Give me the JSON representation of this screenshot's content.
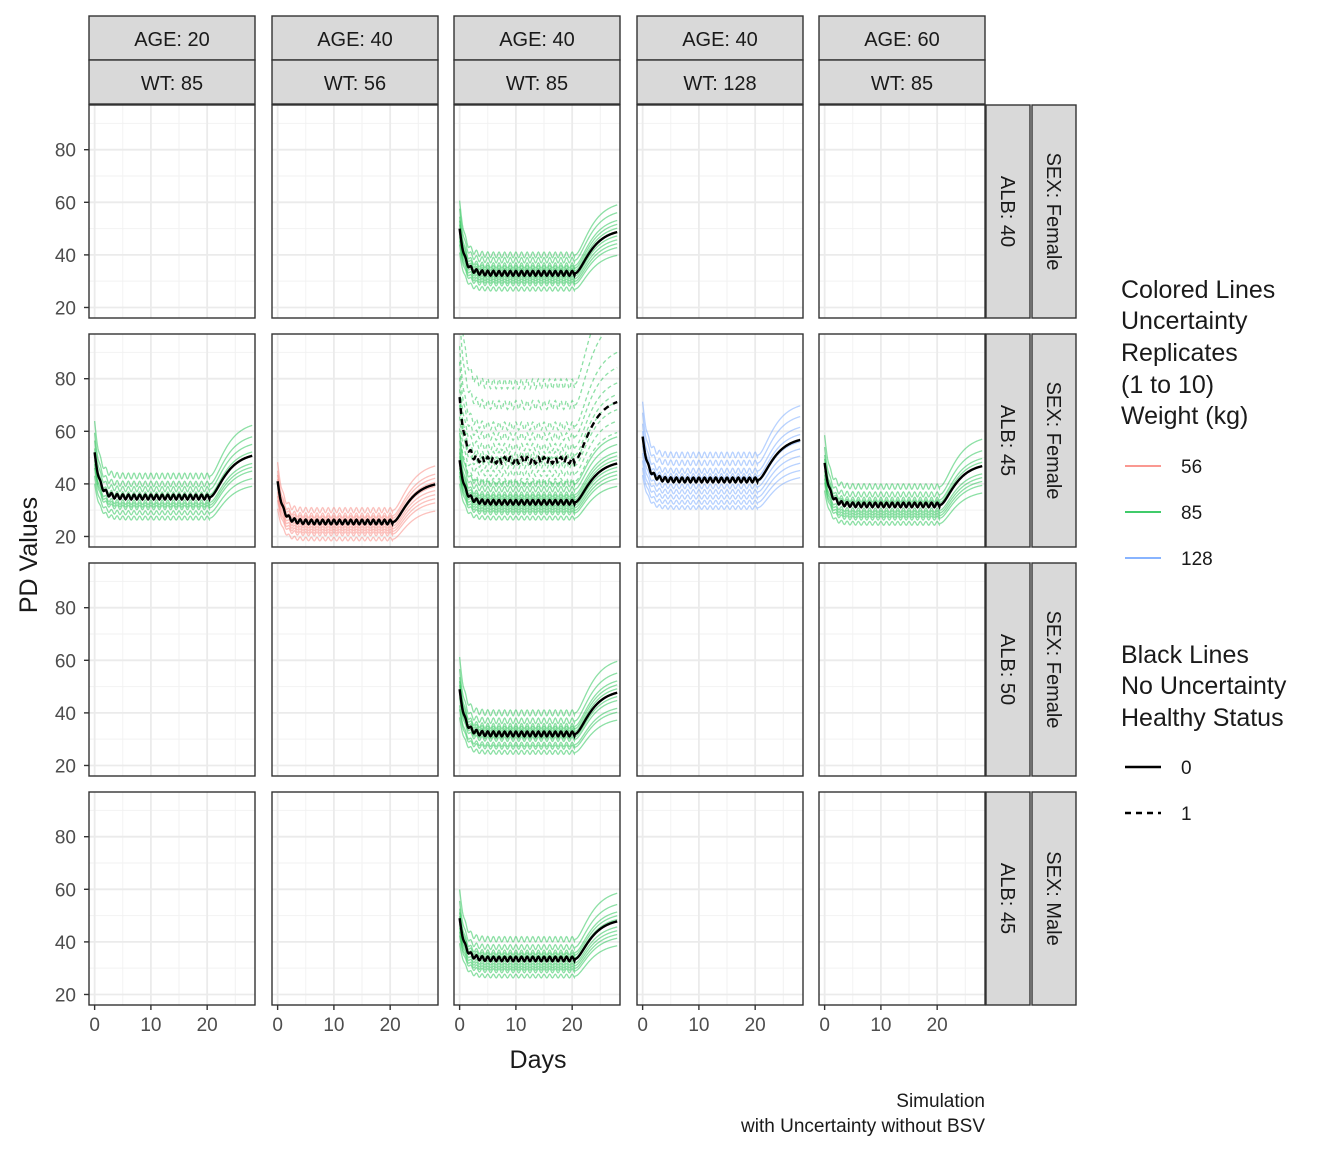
{
  "chart_data": {
    "type": "line",
    "title": "",
    "xlabel": "Days",
    "ylabel": "PD Values",
    "xlim": [
      -1,
      28.5
    ],
    "ylim": [
      16,
      97
    ],
    "x_ticks": [
      0,
      10,
      20
    ],
    "y_ticks": [
      20,
      40,
      60,
      80
    ],
    "grid": true,
    "caption": [
      "Simulation",
      "with Uncertainty without BSV"
    ],
    "facet_columns": [
      {
        "age": "AGE: 20",
        "wt": "WT: 85"
      },
      {
        "age": "AGE: 40",
        "wt": "WT: 56"
      },
      {
        "age": "AGE: 40",
        "wt": "WT: 85"
      },
      {
        "age": "AGE: 40",
        "wt": "WT: 128"
      },
      {
        "age": "AGE: 60",
        "wt": "WT: 85"
      }
    ],
    "facet_rows": [
      {
        "alb": "ALB: 40",
        "sex": "SEX: Female"
      },
      {
        "alb": "ALB: 45",
        "sex": "SEX: Female"
      },
      {
        "alb": "ALB: 50",
        "sex": "SEX: Female"
      },
      {
        "alb": "ALB: 45",
        "sex": "SEX: Male"
      }
    ],
    "legend_colored": {
      "title": [
        "Colored Lines",
        "Uncertainty",
        "Replicates",
        "(1 to 10)",
        "Weight (kg)"
      ],
      "items": [
        {
          "label": "56",
          "color": "#F8766D"
        },
        {
          "label": "85",
          "color": "#00BA38"
        },
        {
          "label": "128",
          "color": "#619CFF"
        }
      ]
    },
    "legend_black": {
      "title": [
        "Black Lines",
        "No Uncertainty",
        "Healthy Status"
      ],
      "items": [
        {
          "label": "0",
          "linetype": "solid"
        },
        {
          "label": "1",
          "linetype": "dashed"
        }
      ]
    },
    "curve_model": {
      "description": "damped exponential drop with daily oscillation, rise after day 20",
      "dose_off_day": 20.5,
      "end_day": 28
    },
    "panels": [
      {
        "row": 0,
        "col": 2,
        "weight": "85",
        "healthy": [
          {
            "status": "0",
            "baseline": 50,
            "trough": 33
          }
        ],
        "replicate_troughs": [
          27,
          29,
          30,
          31,
          32,
          34,
          35,
          36,
          38,
          40
        ]
      },
      {
        "row": 1,
        "col": 0,
        "weight": "85",
        "healthy": [
          {
            "status": "0",
            "baseline": 52,
            "trough": 35
          }
        ],
        "replicate_troughs": [
          27,
          29,
          31,
          32,
          33,
          35,
          36,
          38,
          40,
          43
        ]
      },
      {
        "row": 1,
        "col": 1,
        "weight": "56",
        "healthy": [
          {
            "status": "0",
            "baseline": 41,
            "trough": 25.5
          }
        ],
        "replicate_troughs": [
          19,
          21,
          22,
          23,
          24,
          25,
          26,
          27,
          28,
          30
        ]
      },
      {
        "row": 1,
        "col": 2,
        "weight": "85",
        "healthy": [
          {
            "status": "0",
            "baseline": 49,
            "trough": 33
          },
          {
            "status": "1",
            "baseline": 73,
            "trough": 49
          }
        ],
        "replicate_troughs": [
          27,
          29,
          30,
          31,
          32,
          34,
          35,
          36,
          38,
          40
        ],
        "dashed_replicate_troughs": [
          41,
          44,
          47,
          49,
          51,
          54,
          58,
          62,
          70,
          78
        ]
      },
      {
        "row": 1,
        "col": 3,
        "weight": "128",
        "healthy": [
          {
            "status": "0",
            "baseline": 58,
            "trough": 41.5
          }
        ],
        "replicate_troughs": [
          31,
          33,
          35,
          37,
          39,
          41,
          43,
          45,
          48,
          51
        ]
      },
      {
        "row": 1,
        "col": 4,
        "weight": "85",
        "healthy": [
          {
            "status": "0",
            "baseline": 48,
            "trough": 32
          }
        ],
        "replicate_troughs": [
          25,
          27,
          28,
          29,
          30,
          32,
          33,
          34,
          36,
          39
        ]
      },
      {
        "row": 2,
        "col": 2,
        "weight": "85",
        "healthy": [
          {
            "status": "0",
            "baseline": 49,
            "trough": 32
          }
        ],
        "replicate_troughs": [
          25,
          27,
          28,
          30,
          31,
          33,
          34,
          35,
          37,
          40
        ]
      },
      {
        "row": 3,
        "col": 2,
        "weight": "85",
        "healthy": [
          {
            "status": "0",
            "baseline": 49,
            "trough": 33.5
          }
        ],
        "replicate_troughs": [
          27,
          29,
          30,
          31,
          32,
          34,
          35,
          36,
          38,
          41
        ]
      }
    ]
  }
}
